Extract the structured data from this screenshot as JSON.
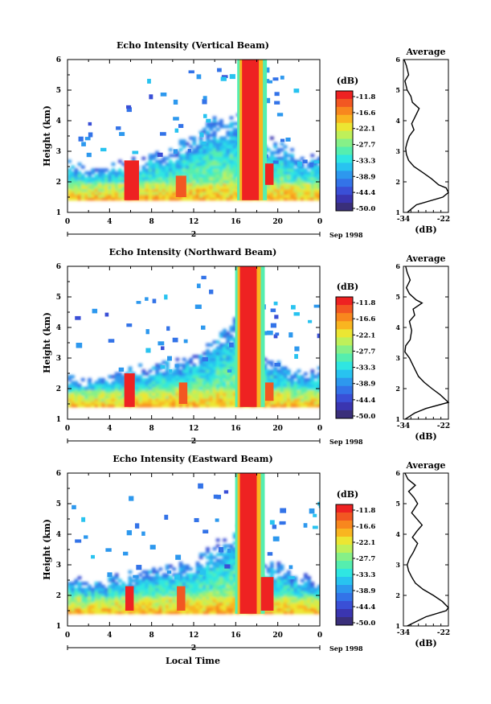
{
  "xlabel_bottom": "Local Time",
  "colorbar": {
    "unit_label": "(dB)",
    "labels": [
      "-11.8",
      "-16.6",
      "-22.1",
      "-27.7",
      "-33.3",
      "-38.9",
      "-44.4",
      "-50.0"
    ],
    "colors": [
      "#ee2222",
      "#f25722",
      "#f8871e",
      "#f9b520",
      "#ece633",
      "#bff05a",
      "#86f088",
      "#55eeaf",
      "#2fe6e2",
      "#28c3f0",
      "#2d98ee",
      "#3373e8",
      "#3a4fd6",
      "#3a35b0",
      "#3a2f7a"
    ]
  },
  "panels": [
    {
      "title": "Echo Intensity (Vertical Beam)",
      "ylabel": "Height (km)",
      "x_ticks": [
        "0",
        "4",
        "8",
        "12",
        "16",
        "20",
        "0"
      ],
      "x_ticks_minor_spacing": 2,
      "date_marker": "2",
      "date_label": "Sep 1998",
      "avg_title": "Average",
      "avg_xticks": [
        "-34",
        "-22"
      ],
      "avg_xlabel": "(dB)"
    },
    {
      "title": "Echo Intensity (Northward Beam)",
      "ylabel": "Height (km)",
      "x_ticks": [
        "0",
        "4",
        "8",
        "12",
        "16",
        "20",
        "0"
      ],
      "x_ticks_minor_spacing": 2,
      "date_marker": "2",
      "date_label": "Sep 1998",
      "avg_title": "Average",
      "avg_xticks": [
        "-34",
        "-22"
      ],
      "avg_xlabel": "(dB)"
    },
    {
      "title": "Echo Intensity (Eastward Beam)",
      "ylabel": "Height (km)",
      "x_ticks": [
        "0",
        "4",
        "8",
        "12",
        "16",
        "20",
        "0"
      ],
      "x_ticks_minor_spacing": 2,
      "date_marker": "2",
      "date_label": "Sep 1998",
      "avg_title": "Average",
      "avg_xticks": [
        "-34",
        "-22"
      ],
      "avg_xlabel": "(dB)"
    }
  ],
  "chart_data": [
    {
      "type": "heatmap",
      "title": "Echo Intensity (Vertical Beam)",
      "ylabel": "Height (km)",
      "xlim": [
        0,
        24
      ],
      "ylim": [
        1,
        6
      ],
      "y_ticks": [
        1,
        2,
        3,
        4,
        5,
        6
      ],
      "x_unit": "local hour",
      "value_unit": "dB",
      "color_range": [
        -50.0,
        -11.8
      ],
      "features": [
        {
          "kind": "base_layer",
          "x": [
            0,
            24
          ],
          "y_top": [
            2.6,
            2.4,
            2.5,
            2.6,
            2.9,
            3.0,
            3.6,
            4.0,
            4.1,
            3.5,
            3.2,
            2.8,
            2.7
          ],
          "value": -38
        },
        {
          "kind": "core",
          "x": [
            5.4,
            6.8
          ],
          "y": [
            1.4,
            2.7
          ],
          "value": -13
        },
        {
          "kind": "core",
          "x": [
            10.3,
            11.3
          ],
          "y": [
            1.5,
            2.2
          ],
          "value": -15
        },
        {
          "kind": "rain_column",
          "x": [
            16.6,
            18.2
          ],
          "y": [
            1.4,
            6.0
          ],
          "value": -11.8
        },
        {
          "kind": "core",
          "x": [
            18.8,
            19.6
          ],
          "y": [
            1.9,
            2.6
          ],
          "value": -13
        }
      ]
    },
    {
      "type": "line",
      "title": "Average",
      "xlabel": "(dB)",
      "xlim": [
        -34,
        -22
      ],
      "ylim": [
        1,
        6
      ],
      "x": [
        -33.8,
        -33.2,
        -32.6,
        -33.6,
        -33.0,
        -32.0,
        -31.6,
        -29.8,
        -30.6,
        -31.8,
        -31.2,
        -32.4,
        -33.0,
        -33.4,
        -33.2,
        -32.6,
        -31.2,
        -28.8,
        -26.5,
        -24.6,
        -22.6,
        -21.5,
        -23.5,
        -30.5,
        -33.0
      ],
      "y": [
        6.0,
        5.8,
        5.5,
        5.3,
        5.0,
        4.8,
        4.6,
        4.4,
        4.2,
        3.9,
        3.7,
        3.5,
        3.3,
        3.1,
        2.9,
        2.7,
        2.5,
        2.3,
        2.1,
        1.9,
        1.8,
        1.65,
        1.5,
        1.25,
        1.0
      ]
    },
    {
      "type": "heatmap",
      "title": "Echo Intensity (Northward Beam)",
      "ylabel": "Height (km)",
      "xlim": [
        0,
        24
      ],
      "ylim": [
        1,
        6
      ],
      "y_ticks": [
        1,
        2,
        3,
        4,
        5,
        6
      ],
      "x_unit": "local hour",
      "value_unit": "dB",
      "color_range": [
        -50.0,
        -11.8
      ],
      "features": [
        {
          "kind": "base_layer",
          "x": [
            0,
            24
          ],
          "y_top": [
            2.3,
            2.2,
            2.4,
            2.6,
            2.7,
            2.9,
            3.0,
            3.7,
            4.2,
            3.1,
            2.7,
            2.5,
            2.6
          ],
          "value": -38
        },
        {
          "kind": "core",
          "x": [
            5.4,
            6.4
          ],
          "y": [
            1.4,
            2.5
          ],
          "value": -13
        },
        {
          "kind": "core",
          "x": [
            10.6,
            11.4
          ],
          "y": [
            1.5,
            2.2
          ],
          "value": -15
        },
        {
          "kind": "rain_column",
          "x": [
            16.4,
            18.0
          ],
          "y": [
            1.4,
            6.0
          ],
          "value": -11.8
        },
        {
          "kind": "core",
          "x": [
            18.8,
            19.6
          ],
          "y": [
            1.6,
            2.2
          ],
          "value": -14
        }
      ]
    },
    {
      "type": "line",
      "title": "Average",
      "xlabel": "(dB)",
      "xlim": [
        -34,
        -22
      ],
      "ylim": [
        1,
        6
      ],
      "x": [
        -33.4,
        -33.0,
        -32.2,
        -33.2,
        -32.4,
        -30.6,
        -29.0,
        -31.4,
        -31.0,
        -32.4,
        -31.8,
        -32.2,
        -33.4,
        -33.6,
        -32.4,
        -31.6,
        -30.8,
        -30.0,
        -28.4,
        -26.4,
        -24.2,
        -21.6,
        -28.0,
        -31.0,
        -33.5
      ],
      "y": [
        6.0,
        5.8,
        5.55,
        5.3,
        5.1,
        4.9,
        4.8,
        4.6,
        4.4,
        4.2,
        3.9,
        3.6,
        3.4,
        3.2,
        3.0,
        2.8,
        2.6,
        2.4,
        2.2,
        2.0,
        1.8,
        1.55,
        1.35,
        1.2,
        1.0
      ]
    },
    {
      "type": "heatmap",
      "title": "Echo Intensity (Eastward Beam)",
      "ylabel": "Height (km)",
      "xlim": [
        0,
        24
      ],
      "ylim": [
        1,
        6
      ],
      "y_ticks": [
        1,
        2,
        3,
        4,
        5,
        6
      ],
      "x_unit": "local hour",
      "value_unit": "dB",
      "color_range": [
        -50.0,
        -11.8
      ],
      "features": [
        {
          "kind": "base_layer",
          "x": [
            0,
            24
          ],
          "y_top": [
            2.5,
            2.4,
            2.5,
            2.7,
            2.8,
            3.0,
            3.1,
            3.7,
            4.2,
            3.1,
            2.9,
            2.6,
            2.5
          ],
          "value": -38
        },
        {
          "kind": "core",
          "x": [
            5.5,
            6.3
          ],
          "y": [
            1.5,
            2.3
          ],
          "value": -13
        },
        {
          "kind": "core",
          "x": [
            10.4,
            11.2
          ],
          "y": [
            1.5,
            2.3
          ],
          "value": -15
        },
        {
          "kind": "rain_column",
          "x": [
            16.4,
            18.0
          ],
          "y": [
            1.4,
            6.0
          ],
          "value": -11.8
        },
        {
          "kind": "core",
          "x": [
            18.4,
            19.6
          ],
          "y": [
            1.5,
            2.6
          ],
          "value": -13
        }
      ]
    },
    {
      "type": "line",
      "title": "Average",
      "xlabel": "(dB)",
      "xlim": [
        -34,
        -22
      ],
      "ylim": [
        1,
        6
      ],
      "x": [
        -33.6,
        -32.8,
        -30.8,
        -32.6,
        -31.2,
        -30.2,
        -31.8,
        -29.0,
        -30.4,
        -31.6,
        -30.2,
        -31.4,
        -32.4,
        -33.0,
        -32.6,
        -31.8,
        -30.8,
        -28.8,
        -26.0,
        -23.6,
        -21.8,
        -22.6,
        -28.0,
        -33.0
      ],
      "y": [
        6.0,
        5.8,
        5.6,
        5.4,
        5.2,
        5.0,
        4.7,
        4.3,
        4.1,
        3.9,
        3.7,
        3.4,
        3.2,
        3.0,
        2.8,
        2.6,
        2.4,
        2.2,
        2.0,
        1.8,
        1.6,
        1.5,
        1.3,
        1.0
      ]
    }
  ]
}
